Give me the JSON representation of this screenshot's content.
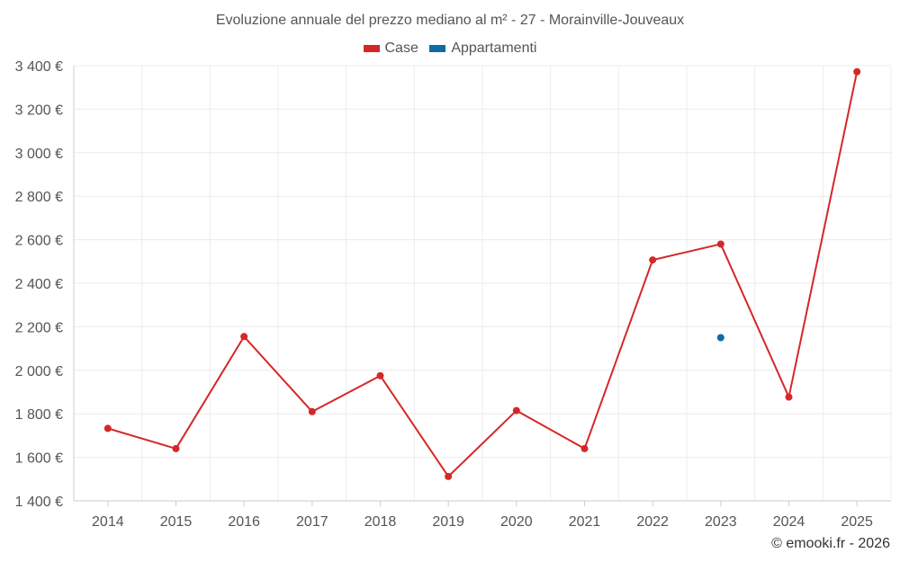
{
  "chart_data": {
    "type": "line",
    "title": "Evoluzione annuale del prezzo mediano al m² - 27 - Morainville-Jouveaux",
    "categories": [
      "2014",
      "2015",
      "2016",
      "2017",
      "2018",
      "2019",
      "2020",
      "2021",
      "2022",
      "2023",
      "2024",
      "2025"
    ],
    "series": [
      {
        "name": "Case",
        "color": "#d62728",
        "values": [
          1733,
          1640,
          2155,
          1810,
          1975,
          1512,
          1815,
          1640,
          2507,
          2580,
          1877,
          3372
        ]
      },
      {
        "name": "Appartamenti",
        "color": "#0f6aa8",
        "values": [
          null,
          null,
          null,
          null,
          null,
          null,
          null,
          null,
          null,
          2150,
          null,
          null
        ]
      }
    ],
    "ylim": [
      1400,
      3400
    ],
    "yticks": [
      1400,
      1600,
      1800,
      2000,
      2200,
      2400,
      2600,
      2800,
      3000,
      3200,
      3400
    ],
    "ytick_labels": [
      "1 400 €",
      "1 600 €",
      "1 800 €",
      "2 000 €",
      "2 200 €",
      "2 400 €",
      "2 600 €",
      "2 800 €",
      "3 000 €",
      "3 200 €",
      "3 400 €"
    ],
    "grid": true,
    "legend_position": "top-center"
  },
  "credit": "© emooki.fr - 2026"
}
